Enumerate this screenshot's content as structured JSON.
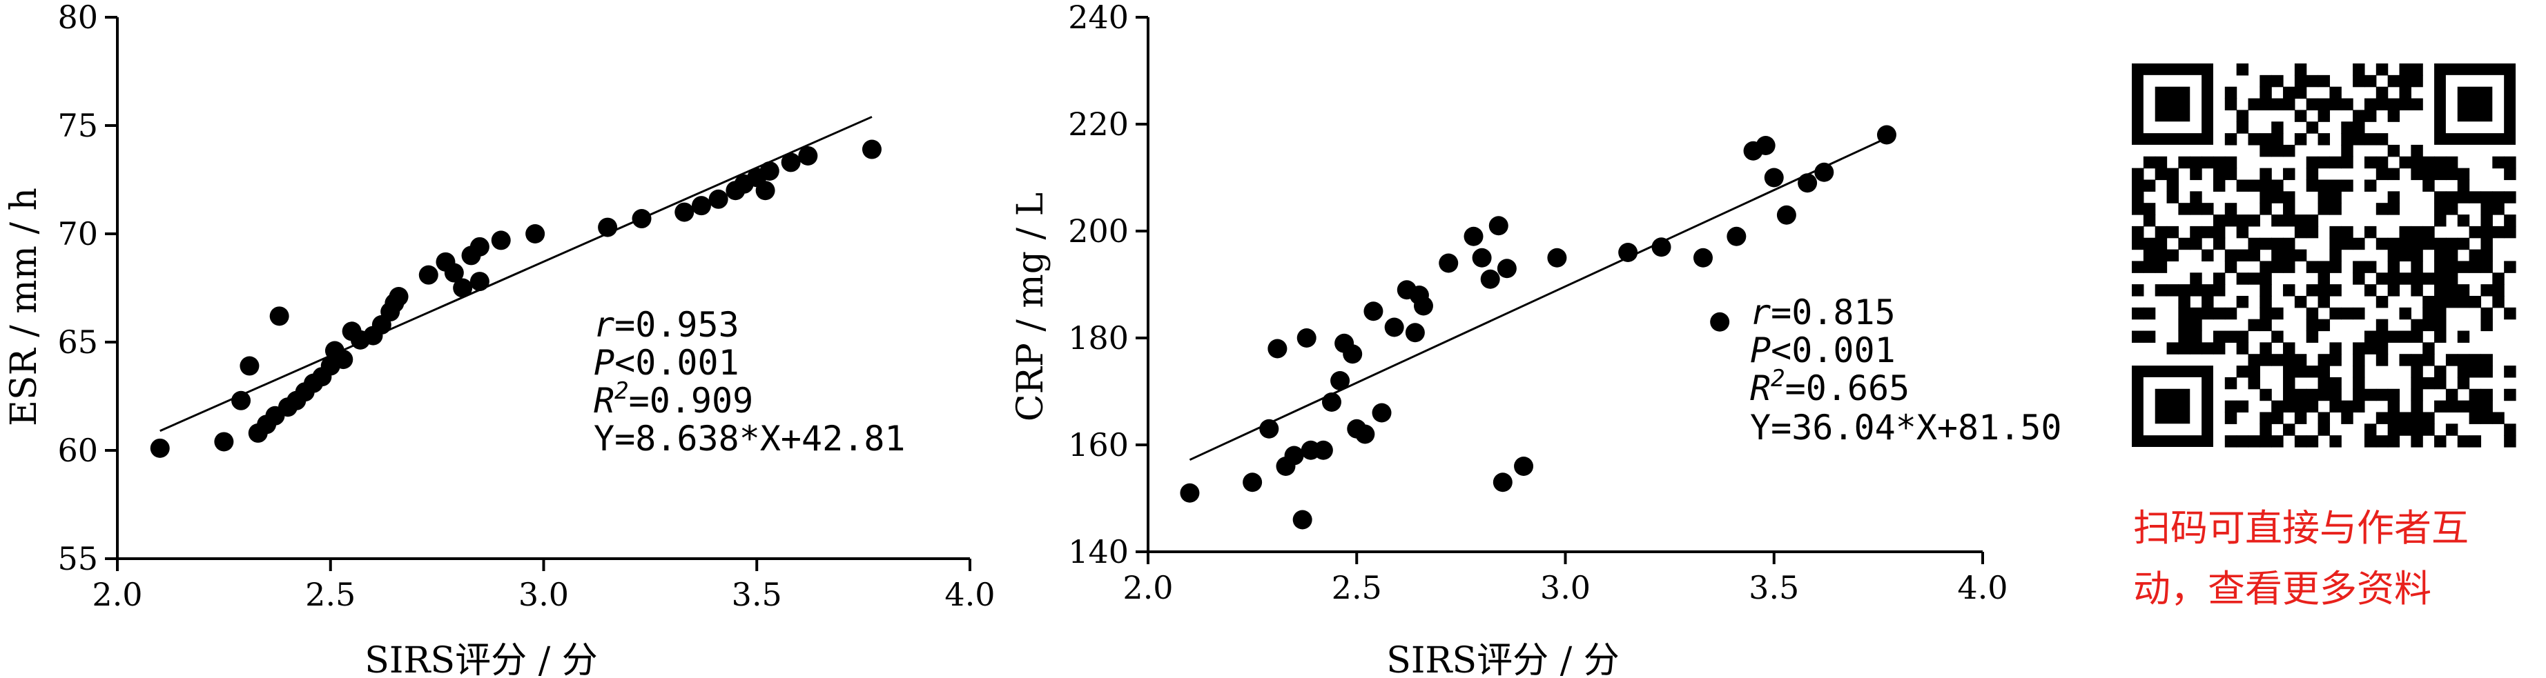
{
  "qr": {
    "caption_line1": "扫码可直接与作者互",
    "caption_line2": "动，查看更多资料"
  },
  "chart_data": [
    {
      "type": "scatter",
      "xlabel": "SIRS评分 / 分",
      "ylabel": "ESR / mm / h",
      "xlim": [
        2.0,
        4.0
      ],
      "ylim": [
        55,
        80
      ],
      "xticks": [
        "2.0",
        "2.5",
        "3.0",
        "3.5",
        "4.0"
      ],
      "yticks": [
        "55",
        "60",
        "65",
        "70",
        "75",
        "80"
      ],
      "stats": {
        "r_sym": "r",
        "r_val": "=0.953",
        "p_sym": "P",
        "p_val": "<0.001",
        "r2_sym": "R",
        "r2_sup": "2",
        "r2_val": "=0.909",
        "equation": "Y=8.638*X+42.81"
      },
      "fit_line": {
        "x": [
          2.1,
          3.77
        ],
        "y": [
          60.9,
          75.4
        ]
      },
      "points": [
        [
          2.1,
          60.1
        ],
        [
          2.25,
          60.4
        ],
        [
          2.29,
          62.3
        ],
        [
          2.31,
          63.9
        ],
        [
          2.33,
          60.8
        ],
        [
          2.35,
          61.2
        ],
        [
          2.37,
          61.6
        ],
        [
          2.38,
          66.2
        ],
        [
          2.4,
          62.0
        ],
        [
          2.42,
          62.3
        ],
        [
          2.44,
          62.7
        ],
        [
          2.46,
          63.1
        ],
        [
          2.48,
          63.4
        ],
        [
          2.5,
          63.9
        ],
        [
          2.51,
          64.6
        ],
        [
          2.53,
          64.2
        ],
        [
          2.55,
          65.5
        ],
        [
          2.57,
          65.1
        ],
        [
          2.6,
          65.3
        ],
        [
          2.62,
          65.8
        ],
        [
          2.64,
          66.4
        ],
        [
          2.65,
          66.8
        ],
        [
          2.66,
          67.1
        ],
        [
          2.73,
          68.1
        ],
        [
          2.77,
          68.7
        ],
        [
          2.79,
          68.2
        ],
        [
          2.81,
          67.5
        ],
        [
          2.83,
          69.0
        ],
        [
          2.85,
          69.4
        ],
        [
          2.85,
          67.8
        ],
        [
          2.9,
          69.7
        ],
        [
          2.98,
          70.0
        ],
        [
          3.15,
          70.3
        ],
        [
          3.23,
          70.7
        ],
        [
          3.33,
          71.0
        ],
        [
          3.37,
          71.3
        ],
        [
          3.41,
          71.6
        ],
        [
          3.45,
          72.0
        ],
        [
          3.47,
          72.3
        ],
        [
          3.5,
          72.6
        ],
        [
          3.52,
          72.0
        ],
        [
          3.53,
          72.9
        ],
        [
          3.58,
          73.3
        ],
        [
          3.62,
          73.6
        ],
        [
          3.77,
          73.9
        ]
      ]
    },
    {
      "type": "scatter",
      "xlabel": "SIRS评分 / 分",
      "ylabel": "CRP / mg / L",
      "xlim": [
        2.0,
        4.0
      ],
      "ylim": [
        140,
        240
      ],
      "xticks": [
        "2.0",
        "2.5",
        "3.0",
        "3.5",
        "4.0"
      ],
      "yticks": [
        "140",
        "160",
        "180",
        "200",
        "220",
        "240"
      ],
      "stats": {
        "r_sym": "r",
        "r_val": "=0.815",
        "p_sym": "P",
        "p_val": "<0.001",
        "r2_sym": "R",
        "r2_sup": "2",
        "r2_val": "=0.665",
        "equation": "Y=36.04*X+81.50"
      },
      "fit_line": {
        "x": [
          2.1,
          3.77
        ],
        "y": [
          157.2,
          217.4
        ]
      },
      "points": [
        [
          2.1,
          151
        ],
        [
          2.25,
          153
        ],
        [
          2.29,
          163
        ],
        [
          2.31,
          178
        ],
        [
          2.33,
          156
        ],
        [
          2.35,
          158
        ],
        [
          2.37,
          146
        ],
        [
          2.38,
          180
        ],
        [
          2.39,
          159
        ],
        [
          2.42,
          159
        ],
        [
          2.44,
          168
        ],
        [
          2.46,
          172
        ],
        [
          2.47,
          179
        ],
        [
          2.49,
          177
        ],
        [
          2.5,
          163
        ],
        [
          2.52,
          162
        ],
        [
          2.54,
          185
        ],
        [
          2.56,
          166
        ],
        [
          2.59,
          182
        ],
        [
          2.62,
          189
        ],
        [
          2.64,
          181
        ],
        [
          2.65,
          188
        ],
        [
          2.66,
          186
        ],
        [
          2.72,
          194
        ],
        [
          2.78,
          199
        ],
        [
          2.8,
          195
        ],
        [
          2.82,
          191
        ],
        [
          2.84,
          201
        ],
        [
          2.85,
          153
        ],
        [
          2.86,
          193
        ],
        [
          2.9,
          156
        ],
        [
          2.98,
          195
        ],
        [
          3.15,
          196
        ],
        [
          3.23,
          197
        ],
        [
          3.33,
          195
        ],
        [
          3.37,
          183
        ],
        [
          3.41,
          199
        ],
        [
          3.45,
          215
        ],
        [
          3.48,
          216
        ],
        [
          3.5,
          210
        ],
        [
          3.53,
          203
        ],
        [
          3.58,
          209
        ],
        [
          3.62,
          211
        ],
        [
          3.77,
          218
        ]
      ]
    }
  ]
}
